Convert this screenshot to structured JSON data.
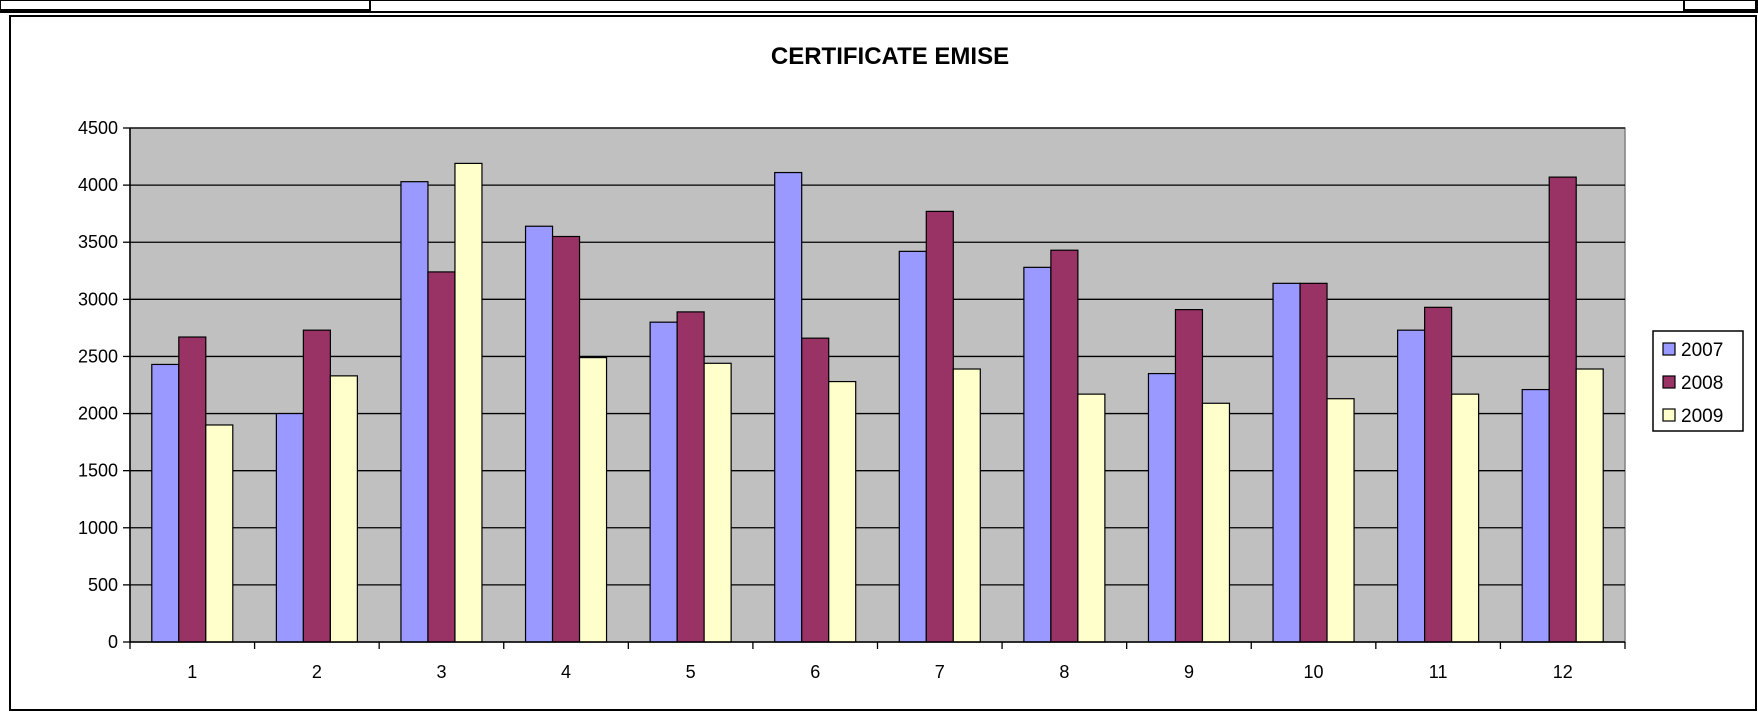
{
  "chart_data": {
    "type": "bar",
    "title": "CERTIFICATE EMISE",
    "xlabel": "",
    "ylabel": "",
    "categories": [
      "1",
      "2",
      "3",
      "4",
      "5",
      "6",
      "7",
      "8",
      "9",
      "10",
      "11",
      "12"
    ],
    "series": [
      {
        "name": "2007",
        "color": "#9999ff",
        "values": [
          2430,
          2000,
          4030,
          3640,
          2800,
          4110,
          3420,
          3280,
          2350,
          3140,
          2730,
          2210
        ]
      },
      {
        "name": "2008",
        "color": "#993366",
        "values": [
          2670,
          2730,
          3240,
          3550,
          2890,
          2660,
          3770,
          3430,
          2910,
          3140,
          2930,
          4070
        ]
      },
      {
        "name": "2009",
        "color": "#ffffcc",
        "values": [
          1900,
          2330,
          4190,
          2490,
          2440,
          2280,
          2390,
          2170,
          2090,
          2130,
          2170,
          2390
        ]
      }
    ],
    "ylim": [
      0,
      4500
    ],
    "yticks": [
      "0",
      "500",
      "1000",
      "1500",
      "2000",
      "2500",
      "3000",
      "3500",
      "4000",
      "4500"
    ],
    "grid": true,
    "plot_background": "#c0c0c0",
    "legend_position": "right"
  }
}
